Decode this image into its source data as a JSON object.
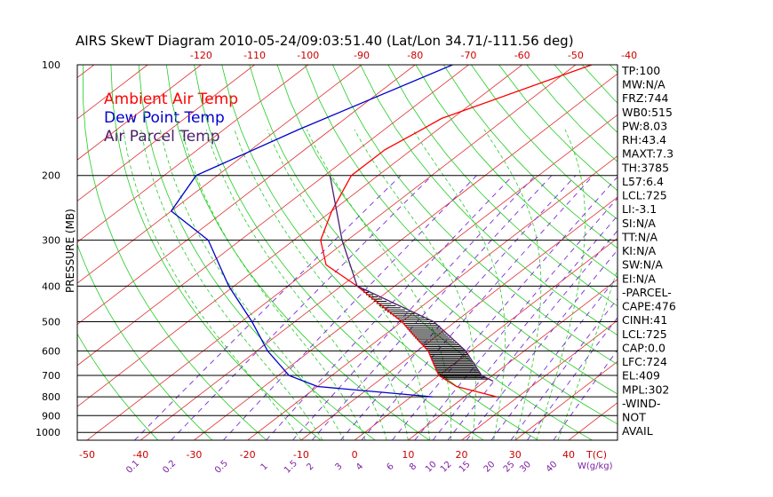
{
  "colors": {
    "ambient": "#ff0000",
    "dewpoint": "#0000cc",
    "parcel": "#4b1c6e",
    "isotherm": "#e03030",
    "dry_adiabat": "#22cc22",
    "moist_adiabat": "#22cc22",
    "mixing_ratio": "#7a2bd6",
    "isobar": "#000000",
    "hatch": "#000000"
  },
  "chart_data": {
    "type": "skewt",
    "title": "AIRS SkewT Diagram 2010-05-24/09:03:51.40 (Lat/Lon 34.71/-111.56 deg)",
    "ylabel": "PRESSURE (MB)",
    "xlabel_bottom": "T(C)",
    "mixing_ratio_label": "W(g/kg)",
    "pressure_ticks": [
      100,
      200,
      300,
      400,
      500,
      600,
      700,
      800,
      900,
      1000
    ],
    "pressure_ticks_labels": [
      "100",
      "200",
      "300",
      "400",
      "500",
      "600",
      "700",
      "800",
      "900",
      "1000"
    ],
    "temp_ticks_top": [
      -120,
      -110,
      -100,
      -90,
      -80,
      -70,
      -60,
      -50,
      -40
    ],
    "temp_ticks_top_labels": [
      "-120",
      "-110",
      "-100",
      "-90",
      "-80",
      "-70",
      "-60",
      "-50",
      "-40"
    ],
    "temp_ticks_bottom": [
      -50,
      -40,
      -30,
      -20,
      -10,
      0,
      10,
      20,
      30,
      40
    ],
    "temp_ticks_bottom_labels": [
      "-50",
      "-40",
      "-30",
      "-20",
      "-10",
      "0",
      "10",
      "20",
      "30",
      "40"
    ],
    "mixing_ratio_ticks": [
      "0.1",
      "0.2",
      "0.5",
      "1",
      "1.5",
      "2",
      "3",
      "4",
      "6",
      "8",
      "10",
      "12",
      "15",
      "20",
      "25",
      "30",
      "40"
    ],
    "legend": [
      {
        "name": "Ambient Air Temp",
        "color": "#ff0000"
      },
      {
        "name": "Dew Point Temp",
        "color": "#0000cc"
      },
      {
        "name": "Air Parcel Temp",
        "color": "#4b1c6e"
      }
    ],
    "series": [
      {
        "name": "Ambient Air Temp",
        "points": [
          [
            100,
            -47
          ],
          [
            140,
            -62
          ],
          [
            150,
            -63
          ],
          [
            170,
            -65
          ],
          [
            200,
            -65
          ],
          [
            250,
            -60
          ],
          [
            300,
            -55
          ],
          [
            350,
            -48
          ],
          [
            400,
            -37
          ],
          [
            500,
            -20
          ],
          [
            600,
            -8
          ],
          [
            700,
            0
          ],
          [
            750,
            6
          ],
          [
            800,
            16
          ]
        ]
      },
      {
        "name": "Dew Point Temp",
        "points": [
          [
            100,
            -73
          ],
          [
            150,
            -86
          ],
          [
            200,
            -94
          ],
          [
            250,
            -90
          ],
          [
            300,
            -76
          ],
          [
            400,
            -61
          ],
          [
            500,
            -48
          ],
          [
            600,
            -38
          ],
          [
            700,
            -28
          ],
          [
            750,
            -20
          ],
          [
            800,
            4
          ]
        ]
      },
      {
        "name": "Air Parcel Temp",
        "points": [
          [
            200,
            -69
          ],
          [
            300,
            -51
          ],
          [
            400,
            -37
          ],
          [
            500,
            -14
          ],
          [
            600,
            -1
          ],
          [
            700,
            8
          ],
          [
            725,
            11.5
          ]
        ]
      }
    ],
    "stats": {
      "TP": "100",
      "MW": "N/A",
      "FRZ": "744",
      "WB0": "515",
      "PW": "8.03",
      "RH": "43.4",
      "MAXT": "7.3",
      "TH": "3785",
      "L57": "6.4",
      "LCL": "725",
      "LI": "-3.1",
      "SI": "N/A",
      "TT": "N/A",
      "KI": "N/A",
      "SW": "N/A",
      "EI": "N/A",
      "CAPE": "476",
      "CINH": "41",
      "LCL2": "725",
      "CAP": "0.0",
      "LFC": "724",
      "EL": "409",
      "MPL": "302"
    },
    "stat_lines": [
      "TP:100",
      "MW:N/A",
      "FRZ:744",
      "WB0:515",
      "PW:8.03",
      "RH:43.4",
      "MAXT:7.3",
      "TH:3785",
      "L57:6.4",
      "LCL:725",
      "LI:-3.1",
      "SI:N/A",
      "TT:N/A",
      "KI:N/A",
      "SW:N/A",
      "EI:N/A",
      "-PARCEL-",
      "CAPE:476",
      "CINH:41",
      "LCL:725",
      "CAP:0.0",
      "LFC:724",
      "EL:409",
      "MPL:302",
      "-WIND-",
      "NOT",
      "AVAIL"
    ]
  }
}
